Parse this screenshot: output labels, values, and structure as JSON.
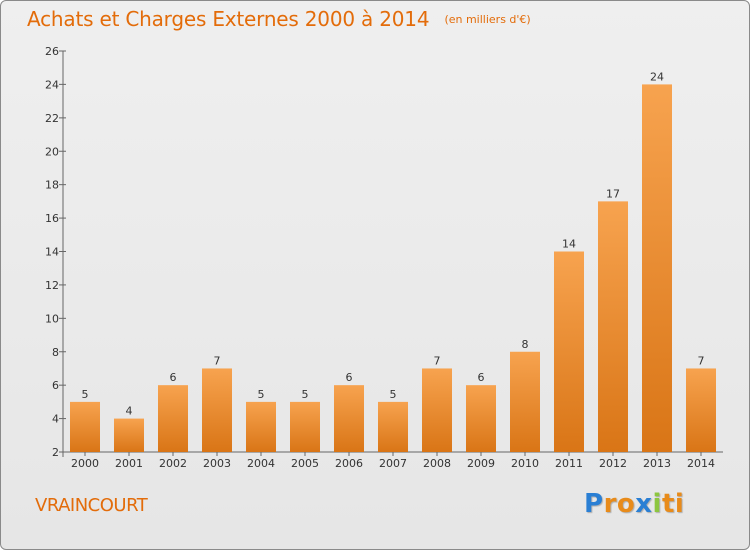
{
  "title": "Achats et Charges Externes 2000 à 2014",
  "unit": "(en milliers d'€)",
  "commune": "VRAINCOURT",
  "logo": {
    "letters": [
      "P",
      "r",
      "o",
      "x",
      "i",
      "ti"
    ]
  },
  "colors": {
    "title": "#e36c0a",
    "bar_light": "#f7a34f",
    "bar_dark": "#d97516",
    "axis": "#555555",
    "background": "#e9e9e9"
  },
  "chart_data": {
    "type": "bar",
    "categories": [
      "2000",
      "2001",
      "2002",
      "2003",
      "2004",
      "2005",
      "2006",
      "2007",
      "2008",
      "2009",
      "2010",
      "2011",
      "2012",
      "2013",
      "2014"
    ],
    "values": [
      5,
      4,
      6,
      7,
      5,
      5,
      6,
      5,
      7,
      6,
      8,
      14,
      17,
      24,
      7
    ],
    "ylim": [
      2,
      26
    ],
    "yticks": [
      2,
      4,
      6,
      8,
      10,
      12,
      14,
      16,
      18,
      20,
      22,
      24,
      26
    ],
    "grid": false,
    "data_labels": true
  }
}
